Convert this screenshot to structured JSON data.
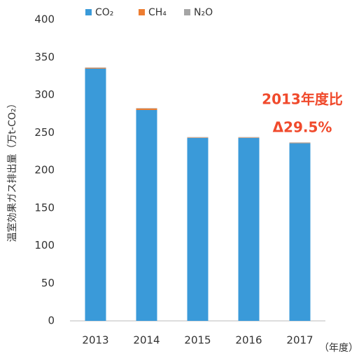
{
  "chart_data": {
    "type": "stacked_bar",
    "y_label": "温室効果ガス排出量（万t-CO₂）",
    "x_label": "（年度）",
    "annotations": [
      "2013年度比",
      "Δ29.5%"
    ],
    "categories": [
      "2013",
      "2014",
      "2015",
      "2016",
      "2017"
    ],
    "series": [
      {
        "name": "CO₂",
        "color": "#3a9ad9",
        "values": [
          335,
          280,
          243,
          243,
          236
        ]
      },
      {
        "name": "CH₄",
        "color": "#ed7d31",
        "values": [
          1,
          2,
          0.5,
          0.5,
          0.5
        ]
      },
      {
        "name": "N₂O",
        "color": "#a5a5a5",
        "values": [
          0.5,
          0.5,
          0.5,
          0.5,
          0.5
        ]
      }
    ],
    "ylim": [
      0,
      400
    ],
    "yticks": [
      0,
      50,
      100,
      150,
      200,
      250,
      300,
      350,
      400
    ],
    "grid": false,
    "legend": "top"
  }
}
